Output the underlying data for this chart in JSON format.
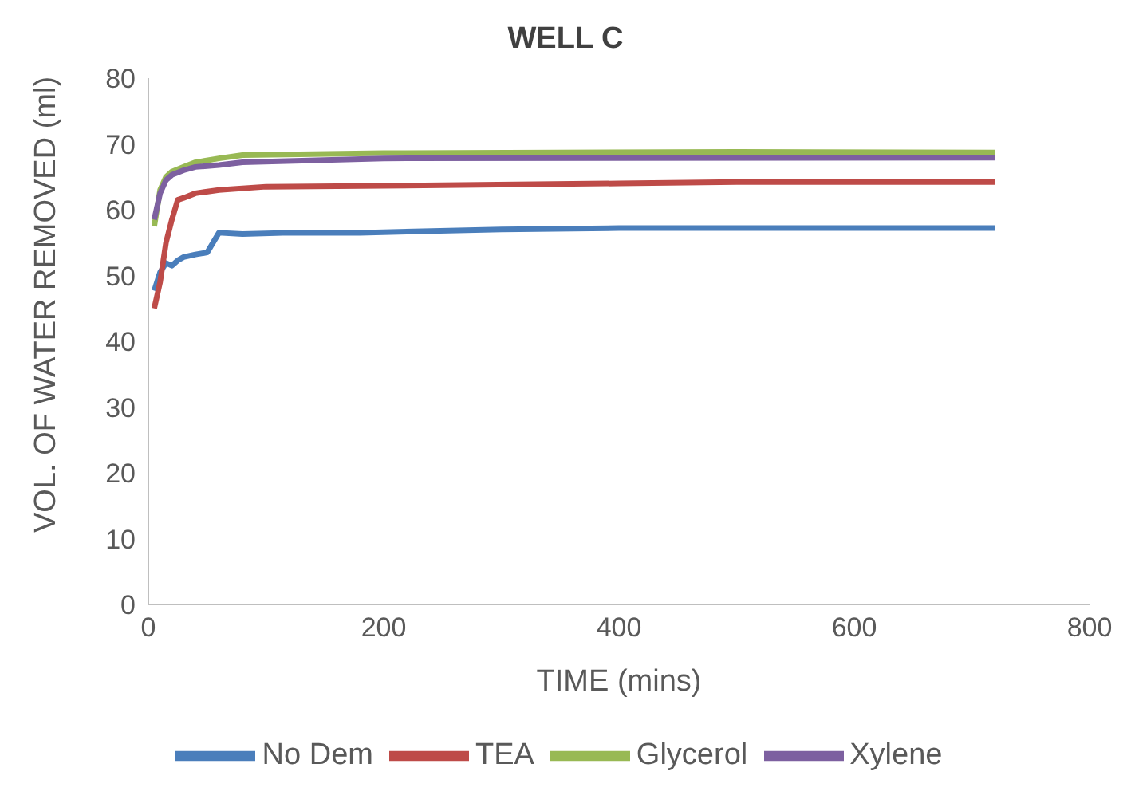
{
  "chart_data": {
    "type": "line",
    "title": "WELL C",
    "xlabel": "TIME (mins)",
    "ylabel": "VOL. OF WATER REMOVED (ml)",
    "xlim": [
      0,
      800
    ],
    "xticks": [
      0,
      200,
      400,
      600,
      800
    ],
    "ylim": [
      0,
      80
    ],
    "yticks": [
      0,
      10,
      20,
      30,
      40,
      50,
      60,
      70,
      80
    ],
    "grid": false,
    "legend": "bottom",
    "marker": "none",
    "line_style": "solid",
    "series": [
      {
        "name": "No Dem",
        "color": "#4a7ebb",
        "x": [
          5,
          10,
          15,
          20,
          25,
          30,
          40,
          50,
          60,
          80,
          120,
          180,
          300,
          400,
          720
        ],
        "values": [
          47.7,
          50.5,
          51.9,
          51.5,
          52.3,
          52.8,
          53.2,
          53.5,
          56.5,
          56.3,
          56.5,
          56.5,
          57,
          57.2,
          57.2
        ]
      },
      {
        "name": "TEA",
        "color": "#be4b48",
        "x": [
          5,
          10,
          15,
          20,
          25,
          30,
          40,
          60,
          100,
          180,
          400,
          500,
          720
        ],
        "values": [
          45,
          49,
          55,
          58.5,
          61.5,
          61.8,
          62.5,
          63,
          63.5,
          63.6,
          64,
          64.2,
          64.2
        ]
      },
      {
        "name": "Glycerol",
        "color": "#98b954",
        "x": [
          5,
          10,
          15,
          20,
          30,
          40,
          60,
          80,
          200,
          500,
          720
        ],
        "values": [
          57.5,
          63,
          65,
          65.8,
          66.5,
          67.2,
          67.8,
          68.3,
          68.6,
          68.8,
          68.7
        ]
      },
      {
        "name": "Xylene",
        "color": "#7d60a0",
        "x": [
          5,
          10,
          15,
          20,
          30,
          40,
          60,
          80,
          200,
          720
        ],
        "values": [
          58.5,
          62.5,
          64.5,
          65.3,
          66,
          66.5,
          66.8,
          67.2,
          67.8,
          67.9
        ]
      }
    ]
  }
}
